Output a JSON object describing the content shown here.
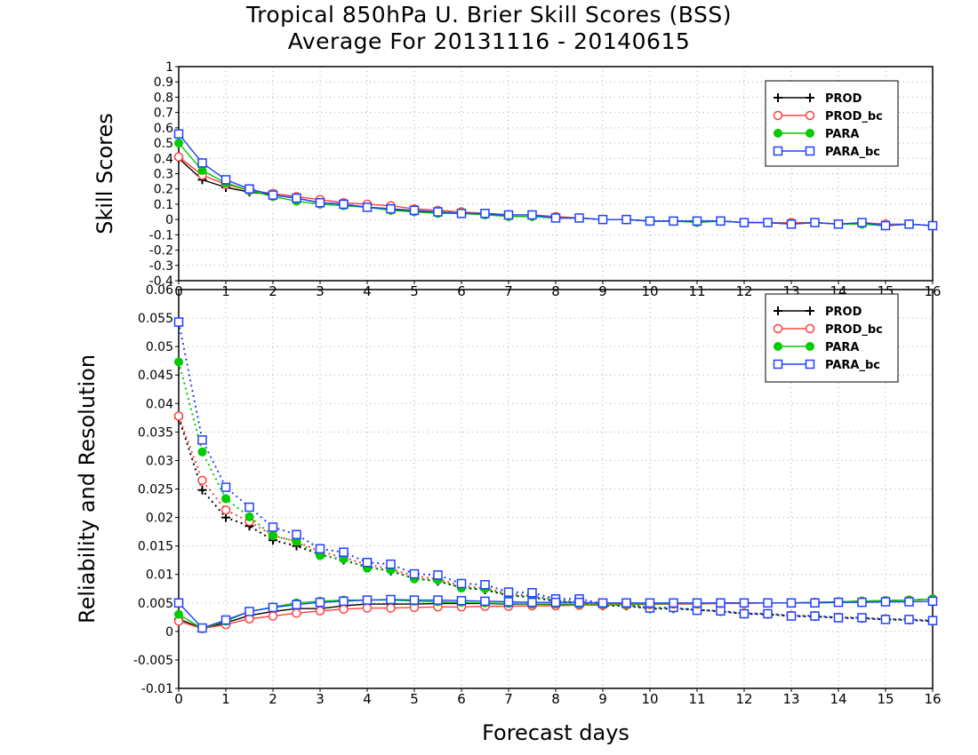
{
  "title_line1": "Tropical 850hPa U. Brier Skill Scores (BSS)",
  "title_line2": "Average For 20131116 - 20140615",
  "xlabel": "Forecast days",
  "legend_entries": [
    "PROD",
    "PROD_bc",
    "PARA",
    "PARA_bc"
  ],
  "series_colors": {
    "PROD": "#000000",
    "PROD_bc": "#ff4040",
    "PARA": "#00cc00",
    "PARA_bc": "#2040ff"
  },
  "chart_data": [
    {
      "type": "line",
      "ylabel": "Skill Scores",
      "xlim": [
        0,
        16
      ],
      "ylim": [
        -0.4,
        1
      ],
      "x_ticks": [
        "0",
        "1",
        "2",
        "3",
        "4",
        "5",
        "6",
        "7",
        "8",
        "9",
        "10",
        "11",
        "12",
        "13",
        "14",
        "15",
        "16"
      ],
      "y_ticks": [
        "-0.4",
        "-0.3",
        "-0.2",
        "-0.1",
        "0",
        "0.1",
        "0.2",
        "0.3",
        "0.4",
        "0.5",
        "0.6",
        "0.7",
        "0.8",
        "0.9",
        "1"
      ],
      "grid": true,
      "legend_position": "top-right",
      "x": [
        0,
        0.5,
        1,
        1.5,
        2,
        2.5,
        3,
        3.5,
        4,
        4.5,
        5,
        5.5,
        6,
        6.5,
        7,
        7.5,
        8,
        8.5,
        9,
        9.5,
        10,
        10.5,
        11,
        11.5,
        12,
        12.5,
        13,
        13.5,
        14,
        14.5,
        15,
        15.5,
        16
      ],
      "series": [
        {
          "name": "PROD",
          "values": [
            0.4,
            0.26,
            0.21,
            0.18,
            0.16,
            0.14,
            0.11,
            0.1,
            0.08,
            0.07,
            0.05,
            0.05,
            0.04,
            0.04,
            0.02,
            0.02,
            0.01,
            0.01,
            0.0,
            0.0,
            -0.01,
            -0.01,
            -0.01,
            -0.01,
            -0.02,
            -0.02,
            -0.03,
            -0.02,
            -0.03,
            -0.03,
            -0.04,
            -0.03,
            -0.04
          ]
        },
        {
          "name": "PROD_bc",
          "values": [
            0.41,
            0.29,
            0.23,
            0.19,
            0.17,
            0.15,
            0.13,
            0.11,
            0.1,
            0.09,
            0.07,
            0.06,
            0.05,
            0.04,
            0.03,
            0.03,
            0.02,
            0.01,
            0.0,
            0.0,
            -0.01,
            -0.01,
            -0.01,
            -0.01,
            -0.02,
            -0.02,
            -0.02,
            -0.02,
            -0.03,
            -0.02,
            -0.03,
            -0.03,
            -0.04
          ]
        },
        {
          "name": "PARA",
          "values": [
            0.5,
            0.32,
            0.24,
            0.19,
            0.15,
            0.12,
            0.1,
            0.09,
            0.08,
            0.06,
            0.05,
            0.04,
            0.04,
            0.03,
            0.02,
            0.02,
            0.01,
            0.01,
            0.0,
            0.0,
            -0.01,
            -0.01,
            -0.02,
            -0.01,
            -0.02,
            -0.02,
            -0.03,
            -0.02,
            -0.03,
            -0.03,
            -0.04,
            -0.03,
            -0.04
          ]
        },
        {
          "name": "PARA_bc",
          "values": [
            0.56,
            0.37,
            0.26,
            0.2,
            0.16,
            0.14,
            0.11,
            0.1,
            0.08,
            0.07,
            0.06,
            0.05,
            0.04,
            0.04,
            0.03,
            0.03,
            0.01,
            0.01,
            0.0,
            0.0,
            -0.01,
            -0.01,
            -0.01,
            -0.01,
            -0.02,
            -0.02,
            -0.03,
            -0.02,
            -0.03,
            -0.02,
            -0.04,
            -0.03,
            -0.04
          ]
        }
      ]
    },
    {
      "type": "line",
      "ylabel": "Reliability and Resolution",
      "xlim": [
        0,
        16
      ],
      "ylim": [
        -0.01,
        0.06
      ],
      "x_ticks": [
        "0",
        "1",
        "2",
        "3",
        "4",
        "5",
        "6",
        "7",
        "8",
        "9",
        "10",
        "11",
        "12",
        "13",
        "14",
        "15",
        "16"
      ],
      "y_ticks": [
        "-0.01",
        "-0.005",
        "0",
        "0.005",
        "0.01",
        "0.015",
        "0.02",
        "0.025",
        "0.03",
        "0.035",
        "0.04",
        "0.045",
        "0.05",
        "0.055",
        "0.06"
      ],
      "grid": true,
      "legend_position": "top-right",
      "x": [
        0,
        0.5,
        1,
        1.5,
        2,
        2.5,
        3,
        3.5,
        4,
        4.5,
        5,
        5.5,
        6,
        6.5,
        7,
        7.5,
        8,
        8.5,
        9,
        9.5,
        10,
        10.5,
        11,
        11.5,
        12,
        12.5,
        13,
        13.5,
        14,
        14.5,
        15,
        15.5,
        16
      ],
      "resolution_series": [
        {
          "name": "PROD",
          "values": [
            0.0375,
            0.0248,
            0.02,
            0.0185,
            0.016,
            0.015,
            0.0135,
            0.0125,
            0.0113,
            0.0106,
            0.0093,
            0.0088,
            0.0077,
            0.0073,
            0.0063,
            0.006,
            0.0053,
            0.005,
            0.0045,
            0.0045,
            0.004,
            0.004,
            0.0038,
            0.0035,
            0.0031,
            0.003,
            0.0027,
            0.0026,
            0.0024,
            0.0023,
            0.0021,
            0.002,
            0.0018
          ]
        },
        {
          "name": "PROD_bc",
          "values": [
            0.0378,
            0.0265,
            0.0213,
            0.0193,
            0.0168,
            0.0158,
            0.014,
            0.013,
            0.0117,
            0.011,
            0.0097,
            0.0092,
            0.008,
            0.0076,
            0.0066,
            0.0063,
            0.0055,
            0.0052,
            0.0047,
            0.0046,
            0.0041,
            0.0041,
            0.0038,
            0.0036,
            0.0032,
            0.0031,
            0.0028,
            0.0027,
            0.0025,
            0.0024,
            0.0022,
            0.0021,
            0.0019
          ]
        },
        {
          "name": "PARA",
          "values": [
            0.0473,
            0.0315,
            0.0233,
            0.0201,
            0.0168,
            0.0158,
            0.0133,
            0.0127,
            0.0111,
            0.0108,
            0.0092,
            0.009,
            0.0076,
            0.0075,
            0.0063,
            0.0062,
            0.0054,
            0.0052,
            0.0046,
            0.0046,
            0.004,
            0.0041,
            0.0037,
            0.0036,
            0.0031,
            0.0031,
            0.0027,
            0.0028,
            0.0024,
            0.0024,
            0.0021,
            0.0021,
            0.0018
          ]
        },
        {
          "name": "PARA_bc",
          "values": [
            0.0543,
            0.0336,
            0.0253,
            0.0218,
            0.0183,
            0.017,
            0.0145,
            0.0139,
            0.0121,
            0.0118,
            0.0101,
            0.0099,
            0.0084,
            0.0082,
            0.0069,
            0.0068,
            0.0057,
            0.0057,
            0.0049,
            0.0049,
            0.0041,
            0.0042,
            0.0037,
            0.0036,
            0.0031,
            0.0031,
            0.0027,
            0.0027,
            0.0024,
            0.0024,
            0.0021,
            0.0021,
            0.0019
          ]
        }
      ],
      "reliability_series": [
        {
          "name": "PROD",
          "values": [
            0.0022,
            0.0005,
            0.0015,
            0.0028,
            0.0035,
            0.004,
            0.004,
            0.0045,
            0.0048,
            0.0048,
            0.0048,
            0.0049,
            0.0049,
            0.0049,
            0.0048,
            0.0048,
            0.0047,
            0.0047,
            0.0048,
            0.0048,
            0.0048,
            0.0049,
            0.0049,
            0.005,
            0.005,
            0.005,
            0.005,
            0.0051,
            0.0052,
            0.0053,
            0.0054,
            0.0055,
            0.0057
          ]
        },
        {
          "name": "PROD_bc",
          "values": [
            0.0018,
            0.0005,
            0.0012,
            0.0022,
            0.0027,
            0.0032,
            0.0036,
            0.0039,
            0.0041,
            0.0041,
            0.0042,
            0.0043,
            0.0043,
            0.0044,
            0.0044,
            0.0045,
            0.0045,
            0.0046,
            0.0046,
            0.0047,
            0.0047,
            0.0048,
            0.0048,
            0.0049,
            0.0049,
            0.005,
            0.005,
            0.0051,
            0.0052,
            0.0053,
            0.0054,
            0.0055,
            0.0057
          ]
        },
        {
          "name": "PARA",
          "values": [
            0.003,
            0.0005,
            0.0018,
            0.0035,
            0.0043,
            0.005,
            0.0053,
            0.0055,
            0.0055,
            0.0055,
            0.0053,
            0.0052,
            0.0051,
            0.005,
            0.0049,
            0.0048,
            0.0048,
            0.0048,
            0.0048,
            0.0048,
            0.0048,
            0.0049,
            0.0049,
            0.005,
            0.005,
            0.005,
            0.005,
            0.0051,
            0.0052,
            0.0053,
            0.0054,
            0.0055,
            0.0057
          ]
        },
        {
          "name": "PARA_bc",
          "values": [
            0.005,
            0.0006,
            0.002,
            0.0035,
            0.0042,
            0.0047,
            0.0051,
            0.0053,
            0.0055,
            0.0056,
            0.0055,
            0.0055,
            0.0054,
            0.0053,
            0.0052,
            0.0051,
            0.0051,
            0.0051,
            0.005,
            0.005,
            0.005,
            0.005,
            0.005,
            0.005,
            0.005,
            0.005,
            0.005,
            0.005,
            0.0051,
            0.0051,
            0.0052,
            0.0052,
            0.0053
          ]
        }
      ]
    }
  ]
}
